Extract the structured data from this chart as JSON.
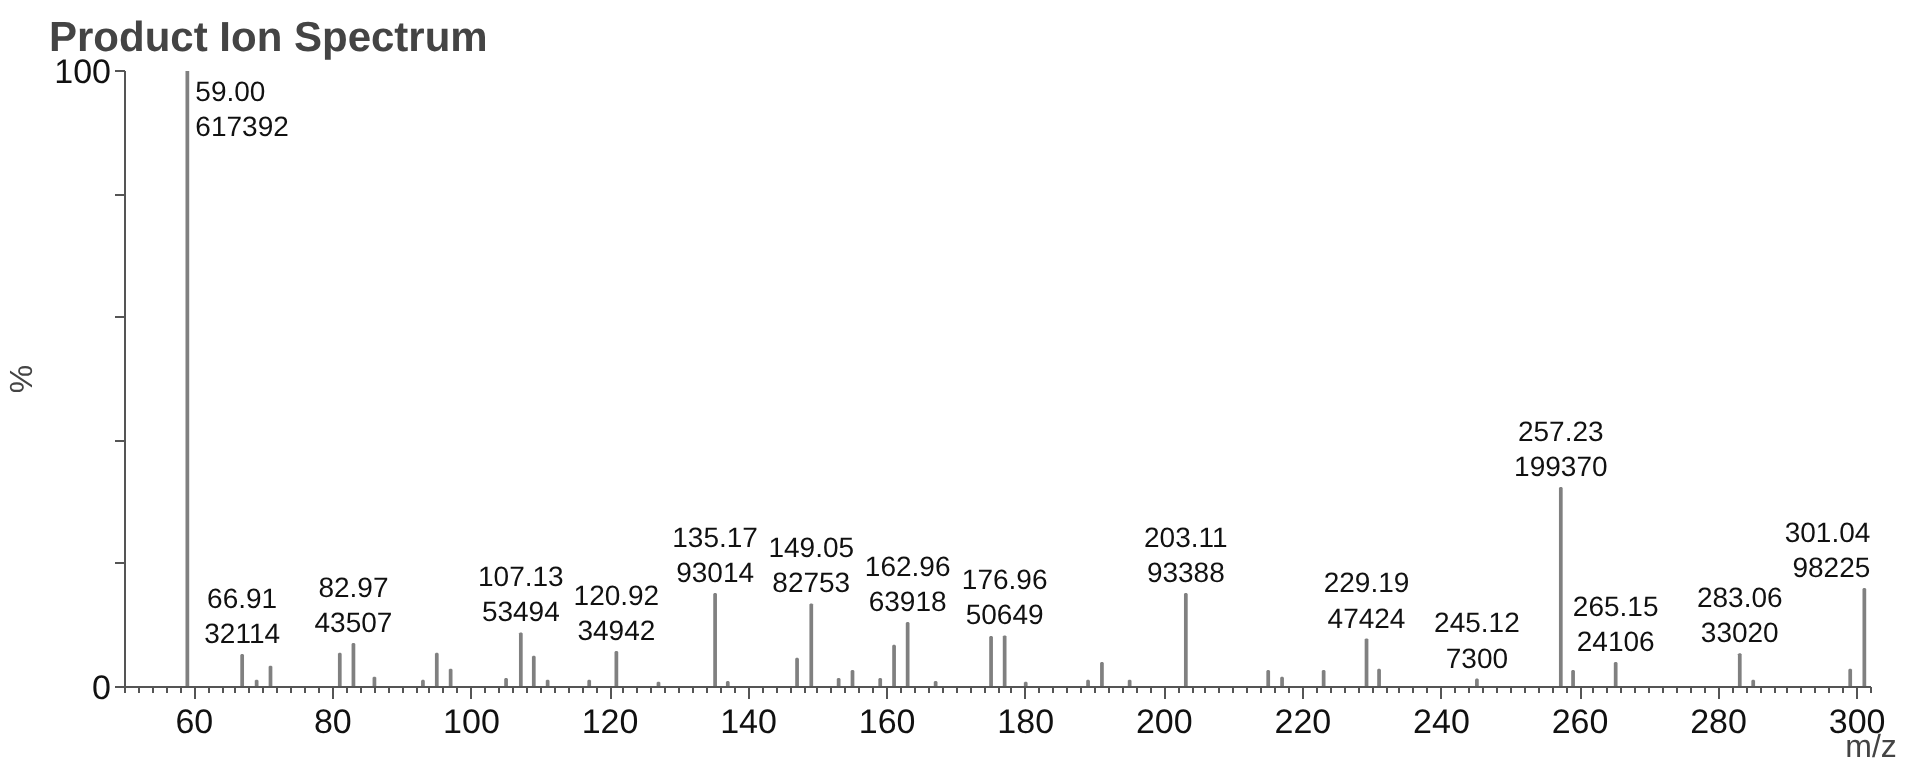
{
  "chart_data": {
    "type": "bar",
    "title": "Product Ion Spectrum",
    "xlabel": "m/z",
    "ylabel": "%",
    "x": [
      59.0,
      66.91,
      69,
      71,
      81,
      82.97,
      86,
      93,
      95,
      97,
      105,
      107.13,
      109,
      111,
      117,
      120.92,
      127,
      135.17,
      137,
      147,
      149.05,
      153,
      155,
      159,
      161,
      162.96,
      167,
      175,
      176.96,
      180,
      189,
      191,
      195,
      203.11,
      215,
      217,
      223,
      229.19,
      231,
      245.12,
      257.23,
      259,
      265.15,
      283.06,
      285,
      299,
      301.04
    ],
    "values": [
      100,
      5.2,
      1.0,
      3.3,
      5.4,
      7.0,
      1.5,
      1.0,
      5.4,
      2.8,
      1.3,
      8.7,
      4.9,
      1.0,
      1.0,
      5.7,
      0.7,
      15.1,
      0.8,
      4.6,
      13.4,
      1.3,
      2.6,
      1.3,
      6.7,
      10.4,
      0.8,
      8.1,
      8.2,
      0.7,
      1.0,
      3.9,
      1.0,
      15.1,
      2.6,
      1.5,
      2.6,
      7.7,
      2.8,
      1.2,
      32.3,
      2.6,
      3.9,
      5.3,
      1.0,
      2.8,
      15.9
    ],
    "annotations": [
      {
        "text": "59.00\n617392",
        "x": 59.0,
        "y": 100
      },
      {
        "text": "66.91\n32114",
        "x": 66.91,
        "y": 5.2
      },
      {
        "text": "82.97\n43507",
        "x": 82.97,
        "y": 7.0
      },
      {
        "text": "107.13\n53494",
        "x": 107.13,
        "y": 8.7
      },
      {
        "text": "120.92\n34942",
        "x": 120.92,
        "y": 5.7
      },
      {
        "text": "135.17\n93014",
        "x": 135.17,
        "y": 15.1
      },
      {
        "text": "149.05\n82753",
        "x": 149.05,
        "y": 13.4
      },
      {
        "text": "162.96\n63918",
        "x": 162.96,
        "y": 10.4
      },
      {
        "text": "176.96\n50649",
        "x": 176.96,
        "y": 8.2
      },
      {
        "text": "203.11\n93388",
        "x": 203.11,
        "y": 15.1
      },
      {
        "text": "229.19\n47424",
        "x": 229.19,
        "y": 7.7
      },
      {
        "text": "245.12\n7300",
        "x": 245.12,
        "y": 1.2
      },
      {
        "text": "257.23\n199370",
        "x": 257.23,
        "y": 32.3
      },
      {
        "text": "265.15\n24106",
        "x": 265.15,
        "y": 3.9
      },
      {
        "text": "283.06\n33020",
        "x": 283.06,
        "y": 5.3
      },
      {
        "text": "301.04\n98225",
        "x": 301.04,
        "y": 15.9
      }
    ],
    "color": "#808080",
    "xlim": [
      50,
      302
    ],
    "xticks": [
      60,
      80,
      100,
      120,
      140,
      160,
      180,
      200,
      220,
      240,
      260,
      280,
      300
    ],
    "ylim": [
      0,
      100
    ],
    "yticks": [
      0,
      {
        "value": 20,
        "label": null
      },
      {
        "value": 40,
        "label": null
      },
      {
        "value": 60,
        "label": null
      },
      {
        "value": 80,
        "label": null
      },
      100
    ],
    "grid": false
  }
}
